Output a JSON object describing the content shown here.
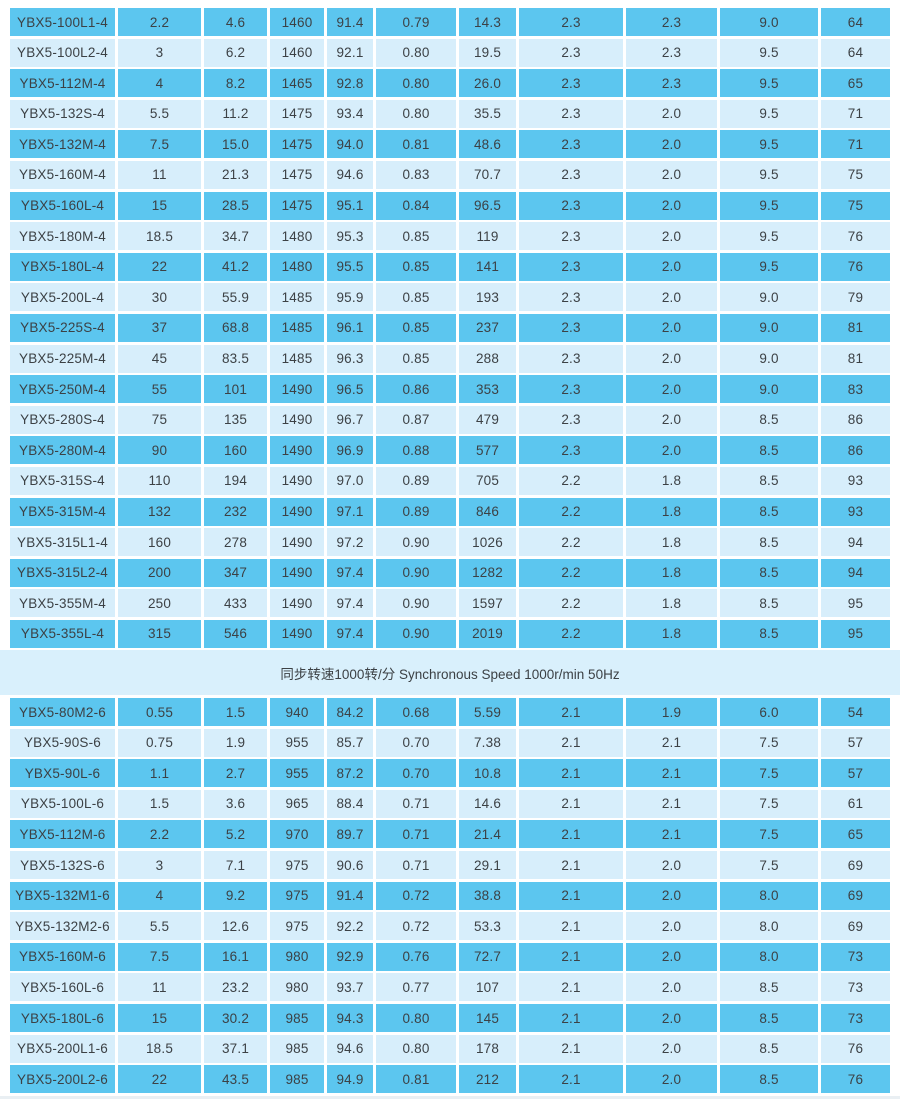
{
  "colors": {
    "row_dark": "#5cc6ef",
    "row_light": "#d7eefb",
    "band_bg": "#d9f0fc",
    "text": "#3c4145",
    "page_bg": "#ffffff"
  },
  "separator": {
    "label": "同步转速1000转/分 Synchronous Speed 1000r/min 50Hz"
  },
  "table_4pole": {
    "rows": [
      [
        "YBX5-100L1-4",
        "2.2",
        "4.6",
        "1460",
        "91.4",
        "0.79",
        "14.3",
        "2.3",
        "2.3",
        "9.0",
        "64"
      ],
      [
        "YBX5-100L2-4",
        "3",
        "6.2",
        "1460",
        "92.1",
        "0.80",
        "19.5",
        "2.3",
        "2.3",
        "9.5",
        "64"
      ],
      [
        "YBX5-112M-4",
        "4",
        "8.2",
        "1465",
        "92.8",
        "0.80",
        "26.0",
        "2.3",
        "2.3",
        "9.5",
        "65"
      ],
      [
        "YBX5-132S-4",
        "5.5",
        "11.2",
        "1475",
        "93.4",
        "0.80",
        "35.5",
        "2.3",
        "2.0",
        "9.5",
        "71"
      ],
      [
        "YBX5-132M-4",
        "7.5",
        "15.0",
        "1475",
        "94.0",
        "0.81",
        "48.6",
        "2.3",
        "2.0",
        "9.5",
        "71"
      ],
      [
        "YBX5-160M-4",
        "11",
        "21.3",
        "1475",
        "94.6",
        "0.83",
        "70.7",
        "2.3",
        "2.0",
        "9.5",
        "75"
      ],
      [
        "YBX5-160L-4",
        "15",
        "28.5",
        "1475",
        "95.1",
        "0.84",
        "96.5",
        "2.3",
        "2.0",
        "9.5",
        "75"
      ],
      [
        "YBX5-180M-4",
        "18.5",
        "34.7",
        "1480",
        "95.3",
        "0.85",
        "119",
        "2.3",
        "2.0",
        "9.5",
        "76"
      ],
      [
        "YBX5-180L-4",
        "22",
        "41.2",
        "1480",
        "95.5",
        "0.85",
        "141",
        "2.3",
        "2.0",
        "9.5",
        "76"
      ],
      [
        "YBX5-200L-4",
        "30",
        "55.9",
        "1485",
        "95.9",
        "0.85",
        "193",
        "2.3",
        "2.0",
        "9.0",
        "79"
      ],
      [
        "YBX5-225S-4",
        "37",
        "68.8",
        "1485",
        "96.1",
        "0.85",
        "237",
        "2.3",
        "2.0",
        "9.0",
        "81"
      ],
      [
        "YBX5-225M-4",
        "45",
        "83.5",
        "1485",
        "96.3",
        "0.85",
        "288",
        "2.3",
        "2.0",
        "9.0",
        "81"
      ],
      [
        "YBX5-250M-4",
        "55",
        "101",
        "1490",
        "96.5",
        "0.86",
        "353",
        "2.3",
        "2.0",
        "9.0",
        "83"
      ],
      [
        "YBX5-280S-4",
        "75",
        "135",
        "1490",
        "96.7",
        "0.87",
        "479",
        "2.3",
        "2.0",
        "8.5",
        "86"
      ],
      [
        "YBX5-280M-4",
        "90",
        "160",
        "1490",
        "96.9",
        "0.88",
        "577",
        "2.3",
        "2.0",
        "8.5",
        "86"
      ],
      [
        "YBX5-315S-4",
        "110",
        "194",
        "1490",
        "97.0",
        "0.89",
        "705",
        "2.2",
        "1.8",
        "8.5",
        "93"
      ],
      [
        "YBX5-315M-4",
        "132",
        "232",
        "1490",
        "97.1",
        "0.89",
        "846",
        "2.2",
        "1.8",
        "8.5",
        "93"
      ],
      [
        "YBX5-315L1-4",
        "160",
        "278",
        "1490",
        "97.2",
        "0.90",
        "1026",
        "2.2",
        "1.8",
        "8.5",
        "94"
      ],
      [
        "YBX5-315L2-4",
        "200",
        "347",
        "1490",
        "97.4",
        "0.90",
        "1282",
        "2.2",
        "1.8",
        "8.5",
        "94"
      ],
      [
        "YBX5-355M-4",
        "250",
        "433",
        "1490",
        "97.4",
        "0.90",
        "1597",
        "2.2",
        "1.8",
        "8.5",
        "95"
      ],
      [
        "YBX5-355L-4",
        "315",
        "546",
        "1490",
        "97.4",
        "0.90",
        "2019",
        "2.2",
        "1.8",
        "8.5",
        "95"
      ]
    ]
  },
  "table_6pole": {
    "rows": [
      [
        "YBX5-80M2-6",
        "0.55",
        "1.5",
        "940",
        "84.2",
        "0.68",
        "5.59",
        "2.1",
        "1.9",
        "6.0",
        "54"
      ],
      [
        "YBX5-90S-6",
        "0.75",
        "1.9",
        "955",
        "85.7",
        "0.70",
        "7.38",
        "2.1",
        "2.1",
        "7.5",
        "57"
      ],
      [
        "YBX5-90L-6",
        "1.1",
        "2.7",
        "955",
        "87.2",
        "0.70",
        "10.8",
        "2.1",
        "2.1",
        "7.5",
        "57"
      ],
      [
        "YBX5-100L-6",
        "1.5",
        "3.6",
        "965",
        "88.4",
        "0.71",
        "14.6",
        "2.1",
        "2.1",
        "7.5",
        "61"
      ],
      [
        "YBX5-112M-6",
        "2.2",
        "5.2",
        "970",
        "89.7",
        "0.71",
        "21.4",
        "2.1",
        "2.1",
        "7.5",
        "65"
      ],
      [
        "YBX5-132S-6",
        "3",
        "7.1",
        "975",
        "90.6",
        "0.71",
        "29.1",
        "2.1",
        "2.0",
        "7.5",
        "69"
      ],
      [
        "YBX5-132M1-6",
        "4",
        "9.2",
        "975",
        "91.4",
        "0.72",
        "38.8",
        "2.1",
        "2.0",
        "8.0",
        "69"
      ],
      [
        "YBX5-132M2-6",
        "5.5",
        "12.6",
        "975",
        "92.2",
        "0.72",
        "53.3",
        "2.1",
        "2.0",
        "8.0",
        "69"
      ],
      [
        "YBX5-160M-6",
        "7.5",
        "16.1",
        "980",
        "92.9",
        "0.76",
        "72.7",
        "2.1",
        "2.0",
        "8.0",
        "73"
      ],
      [
        "YBX5-160L-6",
        "11",
        "23.2",
        "980",
        "93.7",
        "0.77",
        "107",
        "2.1",
        "2.0",
        "8.5",
        "73"
      ],
      [
        "YBX5-180L-6",
        "15",
        "30.2",
        "985",
        "94.3",
        "0.80",
        "145",
        "2.1",
        "2.0",
        "8.5",
        "73"
      ],
      [
        "YBX5-200L1-6",
        "18.5",
        "37.1",
        "985",
        "94.6",
        "0.80",
        "178",
        "2.1",
        "2.0",
        "8.5",
        "76"
      ],
      [
        "YBX5-200L2-6",
        "22",
        "43.5",
        "985",
        "94.9",
        "0.81",
        "212",
        "2.1",
        "2.0",
        "8.5",
        "76"
      ]
    ]
  }
}
